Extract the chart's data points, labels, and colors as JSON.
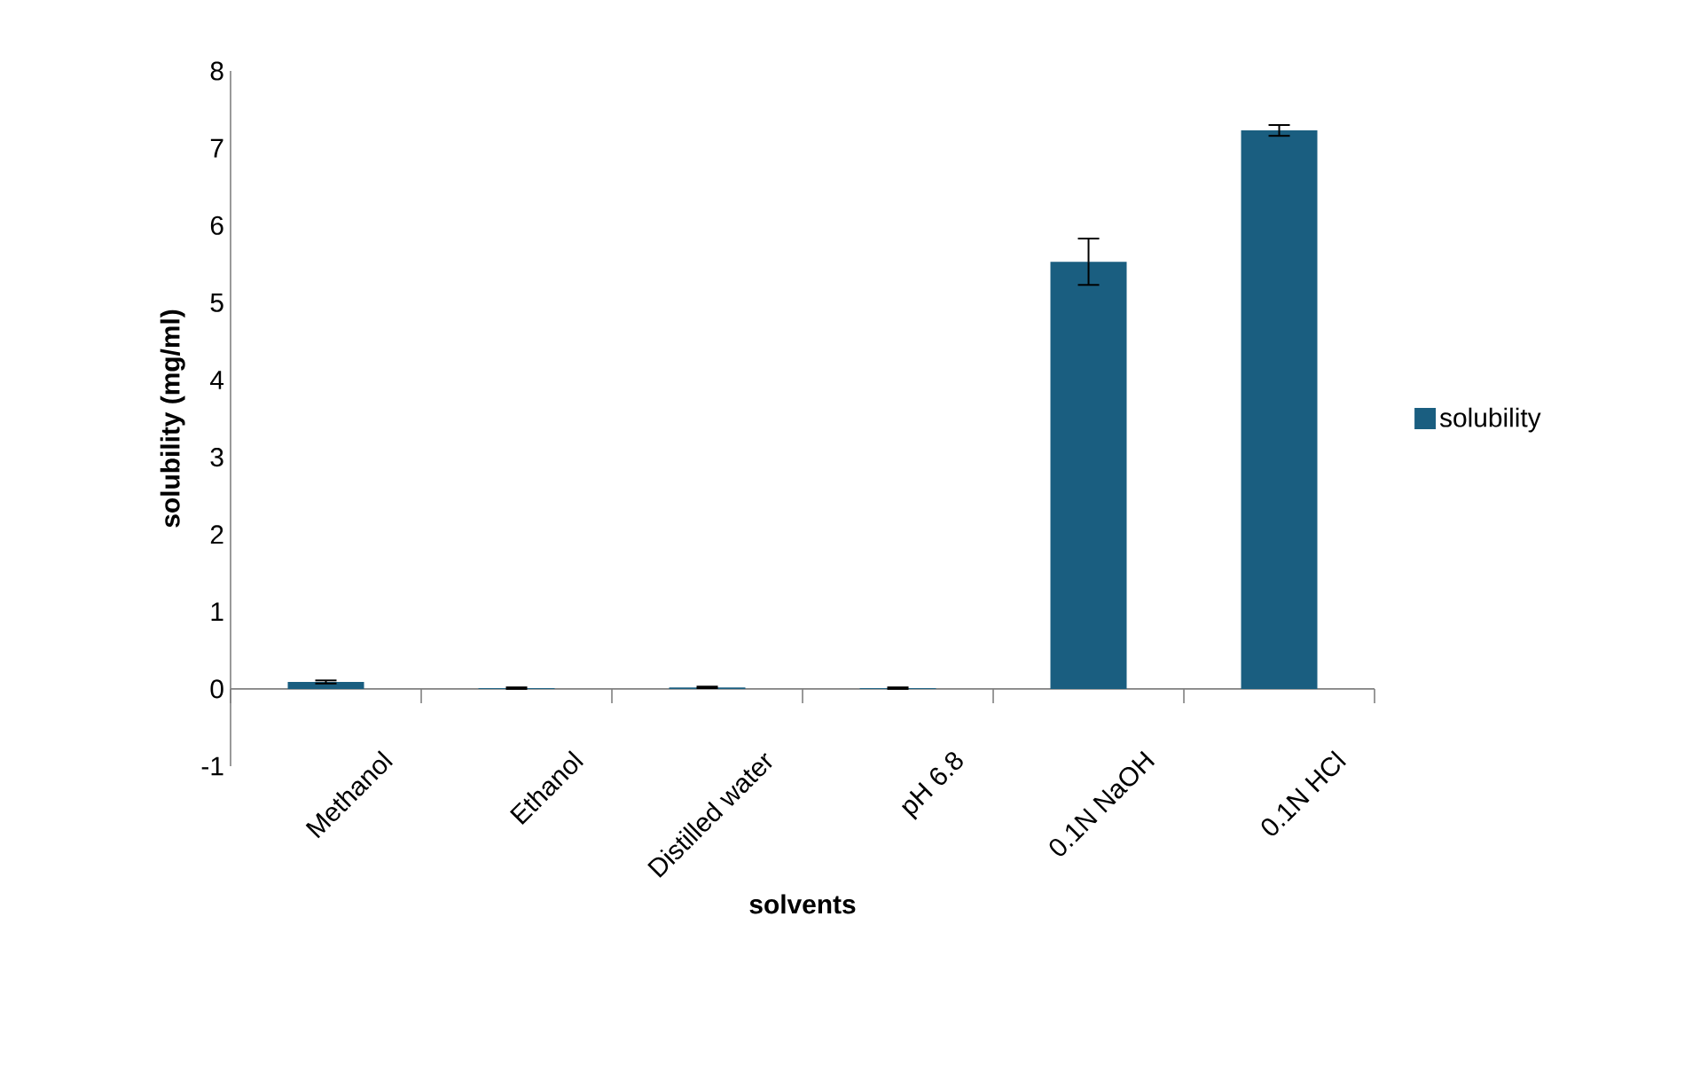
{
  "chart_data": {
    "type": "bar",
    "xlabel": "solvents",
    "ylabel": "solubility (mg/ml)",
    "categories": [
      "Methanol",
      "Ethanol",
      "Distilled water",
      "pH 6.8",
      "0.1N NaOH",
      "0.1N HCl"
    ],
    "series": [
      {
        "name": "solubility",
        "color": "#1a5e80",
        "values": [
          0.09,
          0.01,
          0.02,
          0.01,
          5.53,
          7.23
        ],
        "errors": [
          0.02,
          0.01,
          0.01,
          0.01,
          0.3,
          0.07
        ]
      }
    ],
    "ylim": [
      -1,
      8
    ],
    "yticks": [
      -1,
      0,
      1,
      2,
      3,
      4,
      5,
      6,
      7,
      8
    ],
    "grid": false,
    "legend": "right"
  }
}
